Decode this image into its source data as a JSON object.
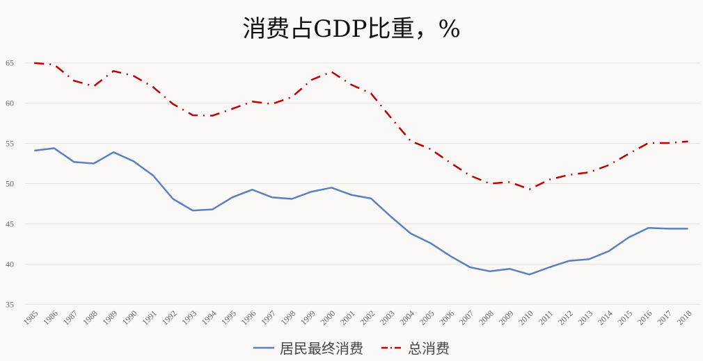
{
  "chart_data": {
    "type": "line",
    "title": "消费占GDP比重，%",
    "xlabel": "",
    "ylabel": "",
    "ylim": [
      35,
      65
    ],
    "yticks": [
      35,
      40,
      45,
      50,
      55,
      60,
      65
    ],
    "grid": true,
    "legend_position": "bottom",
    "x": [
      "1985",
      "1986",
      "1987",
      "1988",
      "1989",
      "1990",
      "1991",
      "1992",
      "1993",
      "1994",
      "1995",
      "1996",
      "1997",
      "1998",
      "1999",
      "2000",
      "2001",
      "2002",
      "2003",
      "2004",
      "2005",
      "2006",
      "2007",
      "2008",
      "2009",
      "2010",
      "2011",
      "2012",
      "2013",
      "2014",
      "2015",
      "2016",
      "2017",
      "2018"
    ],
    "series": [
      {
        "name": "居民最终消费",
        "color": "#5b80c0",
        "style": "solid",
        "values": [
          54.1,
          54.4,
          52.7,
          52.5,
          53.9,
          52.8,
          51.0,
          48.1,
          46.65,
          46.8,
          48.3,
          49.25,
          48.3,
          48.1,
          49.0,
          49.5,
          48.6,
          48.15,
          45.9,
          43.8,
          42.6,
          41.0,
          39.6,
          39.1,
          39.4,
          38.7,
          39.6,
          40.4,
          40.6,
          41.6,
          43.3,
          44.5,
          44.4,
          44.4
        ]
      },
      {
        "name": "总消费",
        "color": "#c00000",
        "style": "dash-dot",
        "values": [
          65.0,
          64.8,
          62.8,
          62.1,
          64.0,
          63.4,
          62.0,
          59.9,
          58.5,
          58.45,
          59.3,
          60.2,
          59.9,
          60.75,
          62.9,
          63.9,
          62.3,
          61.2,
          58.2,
          55.3,
          54.3,
          52.6,
          51.0,
          50.0,
          50.2,
          49.3,
          50.5,
          51.1,
          51.4,
          52.3,
          53.7,
          55.05,
          55.05,
          55.25
        ]
      }
    ]
  }
}
